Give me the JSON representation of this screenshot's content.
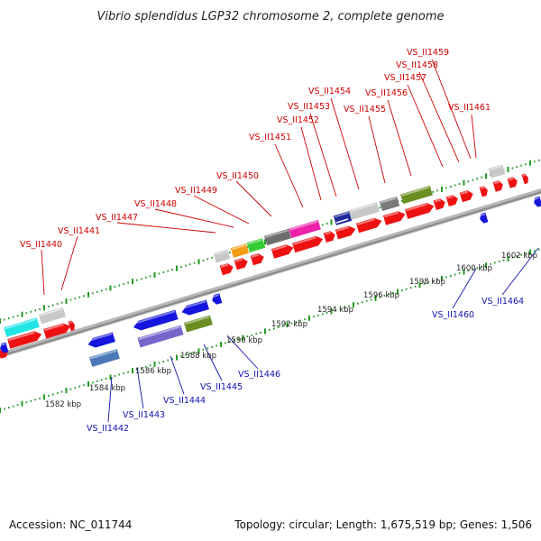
{
  "title": "Vibrio splendidus LGP32 chromosome 2, complete genome",
  "footer": {
    "accession": "Accession: NC_011744",
    "summary": "Topology: circular; Length: 1,675,519 bp; Genes: 1,506"
  },
  "colors": {
    "forward_gene": "#ee1111",
    "reverse_gene": "#1515dd",
    "backbone": "#9a9a9a",
    "tick": "#229922",
    "forward_label": "#d00000",
    "reverse_label": "#1010b0"
  },
  "scale_labels": [
    "1582 kbp",
    "1584 kbp",
    "1586 kbp",
    "1588 kbp",
    "1590 kbp",
    "1592 kbp",
    "1594 kbp",
    "1596 kbp",
    "1598 kbp",
    "1600 kbp",
    "1602 kbp"
  ],
  "forward_gene_labels": [
    "VS_II1440",
    "VS_II1441",
    "VS_II1447",
    "VS_II1448",
    "VS_II1449",
    "VS_II1450",
    "VS_II1451",
    "VS_II1452",
    "VS_II1453",
    "VS_II1454",
    "VS_II1455",
    "VS_II1456",
    "VS_II1457",
    "VS_II1458",
    "VS_II1459",
    "VS_II1461"
  ],
  "reverse_gene_labels": [
    "VS_II1442",
    "VS_II1443",
    "VS_II1444",
    "VS_II1445",
    "VS_II1446",
    "VS_II1460",
    "VS_II1464"
  ]
}
